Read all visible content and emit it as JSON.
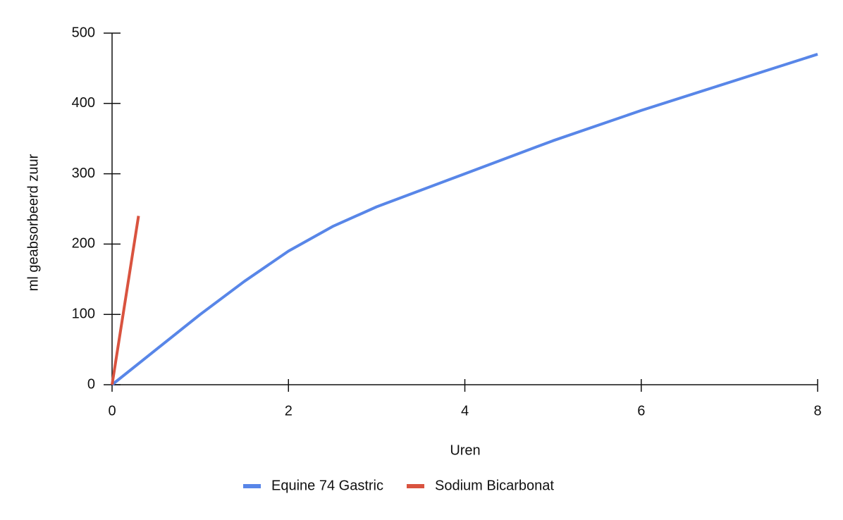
{
  "chart_data": {
    "type": "line",
    "x_label": "Uren",
    "y_label": "ml geabsorbeerd zuur",
    "series": [
      {
        "name": "Equine 74 Gastric",
        "color": "#5886e8",
        "x": [
          0,
          0.5,
          1,
          1.5,
          2,
          2.5,
          3,
          4,
          5,
          6,
          7,
          8
        ],
        "values": [
          0,
          50,
          100,
          147,
          190,
          225,
          253,
          300,
          347,
          390,
          430,
          470
        ]
      },
      {
        "name": "Sodium Bicarbonat",
        "color": "#d9533f",
        "x": [
          0,
          0.3
        ],
        "values": [
          0,
          240
        ]
      }
    ],
    "xlim": [
      0,
      8
    ],
    "xticks": [
      0,
      2,
      4,
      6,
      8
    ],
    "ylim": [
      0,
      500
    ],
    "yticks": [
      0,
      100,
      200,
      300,
      400,
      500
    ],
    "grid": false,
    "legend": "bottom"
  }
}
